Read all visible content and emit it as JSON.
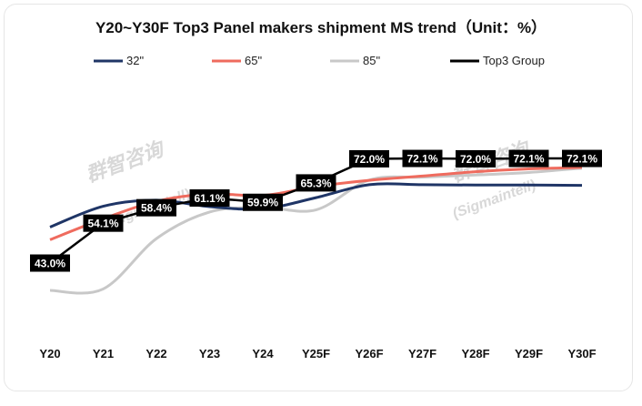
{
  "chart_data": {
    "type": "line",
    "title": "Y20~Y30F Top3 Panel makers shipment MS trend（Unit：%）",
    "categories": [
      "Y20",
      "Y21",
      "Y22",
      "Y23",
      "Y24",
      "Y25F",
      "Y26F",
      "Y27F",
      "Y28F",
      "Y29F",
      "Y30F"
    ],
    "legend_position": "top",
    "grid": false,
    "series": [
      {
        "name": "32\"",
        "color": "#1f3566",
        "values": [
          53,
          58.8,
          60.5,
          58.7,
          58.1,
          61.2,
          64.8,
          64.8,
          64.7,
          64.7,
          64.6
        ]
      },
      {
        "name": "65\"",
        "color": "#ef6b5e",
        "values": [
          49.5,
          55.3,
          60.2,
          62.2,
          61.8,
          64.3,
          66,
          67.2,
          68.4,
          69.2,
          69.6
        ]
      },
      {
        "name": "85\"",
        "color": "#c8c8c8",
        "values": [
          35.4,
          35.8,
          49.8,
          57.2,
          58.5,
          57.8,
          66.1,
          66.9,
          67.5,
          68.2,
          69.4
        ]
      },
      {
        "name": "Top3 Group",
        "color": "#000000",
        "values": [
          43.0,
          54.1,
          58.4,
          61.1,
          59.9,
          65.3,
          72.0,
          72.1,
          72.0,
          72.1,
          72.1
        ],
        "labels": [
          "43.0%",
          "54.1%",
          "58.4%",
          "61.1%",
          "59.9%",
          "65.3%",
          "72.0%",
          "72.1%",
          "72.0%",
          "72.1%",
          "72.1%"
        ]
      }
    ],
    "watermarks": [
      "群智咨询",
      "(Sigmaintell)"
    ]
  }
}
